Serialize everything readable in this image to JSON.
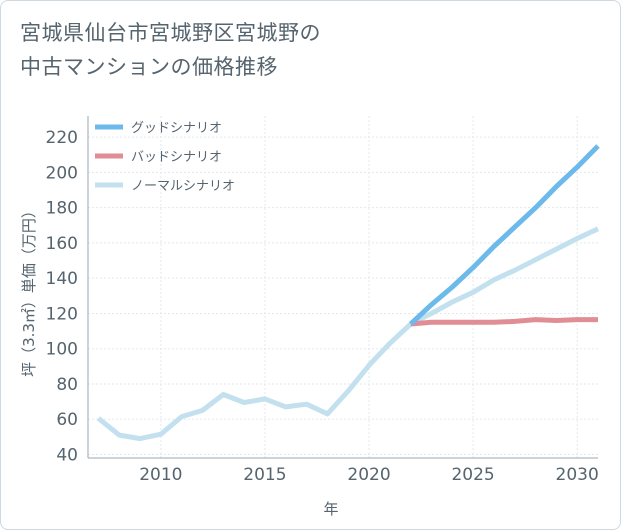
{
  "chart_data": {
    "type": "line",
    "title_line1": "宮城県仙台市宮城野区宮城野の",
    "title_line2": "中古マンションの価格推移",
    "xlabel": "年",
    "ylabel": "坪（3.3㎡）単価（万円）",
    "xlim": [
      2006.5,
      2031
    ],
    "ylim": [
      38,
      232
    ],
    "xticks": [
      2010,
      2015,
      2020,
      2025,
      2030
    ],
    "yticks": [
      40,
      60,
      80,
      100,
      120,
      140,
      160,
      180,
      200,
      220
    ],
    "grid": true,
    "legend_position": "top-left",
    "series": [
      {
        "name": "グッドシナリオ",
        "color": "#6cb9ec",
        "x": [
          2022,
          2023,
          2024,
          2025,
          2026,
          2027,
          2028,
          2029,
          2030,
          2031
        ],
        "y": [
          114,
          125,
          135,
          146,
          158,
          169,
          180,
          192,
          203,
          215
        ]
      },
      {
        "name": "バッドシナリオ",
        "color": "#e18d95",
        "x": [
          2022,
          2023,
          2024,
          2025,
          2026,
          2027,
          2028,
          2029,
          2030,
          2031
        ],
        "y": [
          114,
          115,
          115,
          115,
          115,
          115.5,
          116.5,
          116,
          116.5,
          116.5
        ]
      },
      {
        "name": "ノーマルシナリオ",
        "color": "#c3e0ef",
        "x": [
          2007,
          2008,
          2009,
          2010,
          2011,
          2012,
          2013,
          2014,
          2015,
          2016,
          2017,
          2018,
          2019,
          2020,
          2021,
          2022,
          2023,
          2024,
          2025,
          2026,
          2027,
          2028,
          2029,
          2030,
          2031
        ],
        "y": [
          60.5,
          51,
          49,
          51.5,
          61.5,
          65,
          74,
          69.5,
          71.5,
          67,
          68.5,
          63,
          76,
          90.5,
          103,
          114,
          120,
          126.5,
          132,
          139,
          144.5,
          150.5,
          156.5,
          162.5,
          168
        ]
      }
    ]
  }
}
